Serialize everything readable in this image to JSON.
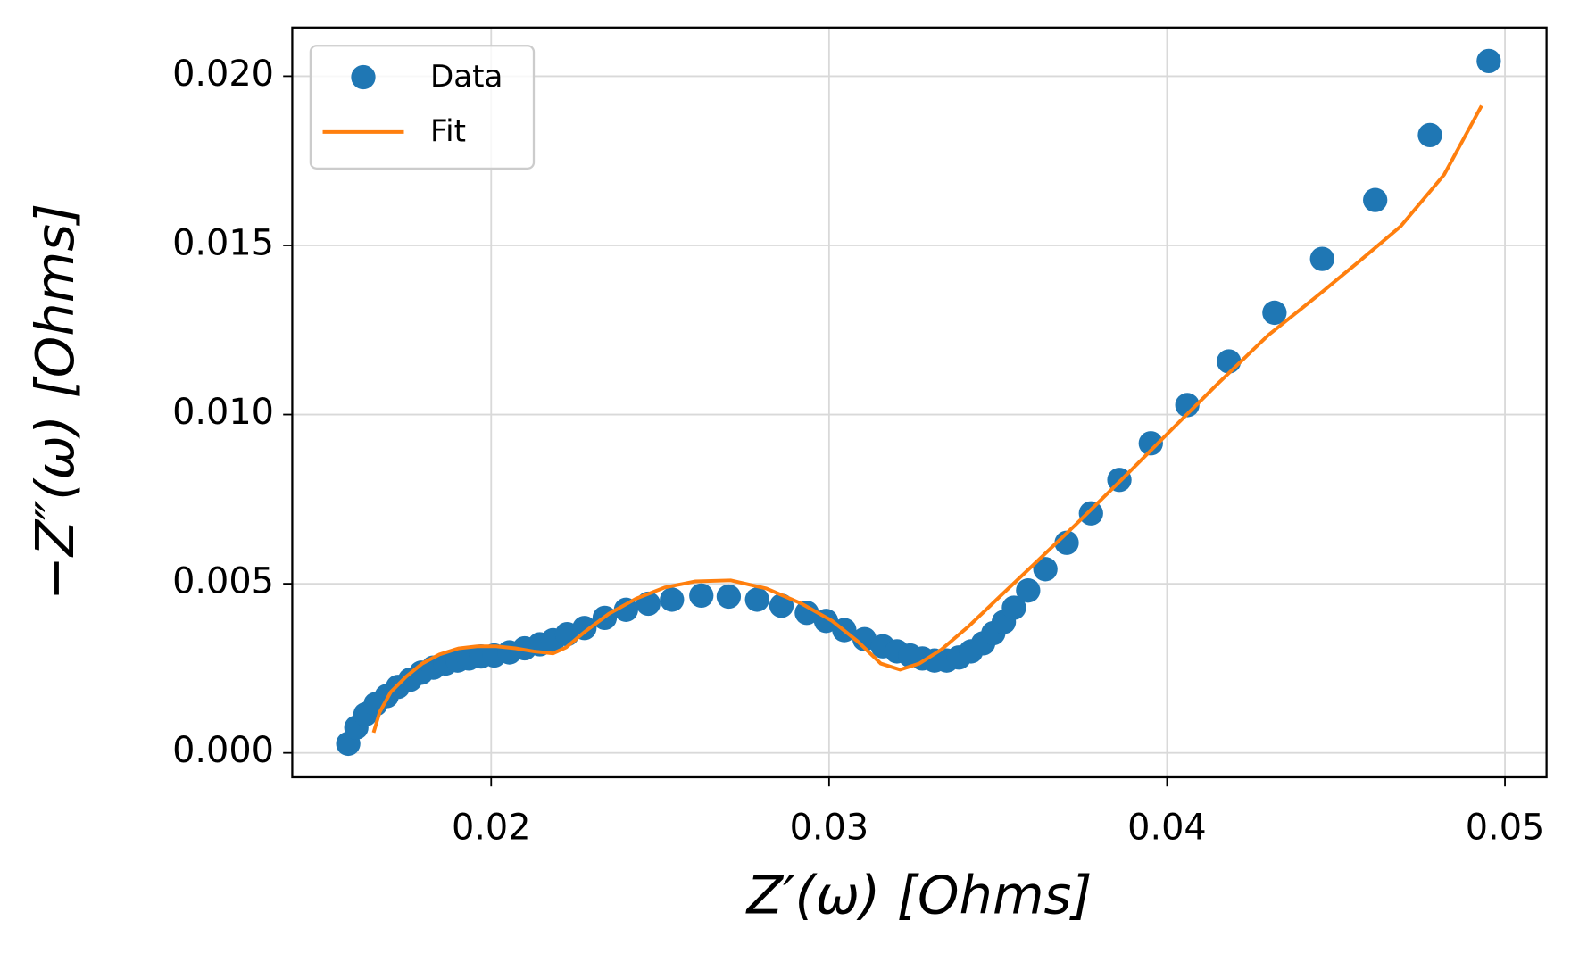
{
  "chart_data": {
    "type": "line",
    "xlabel": "Z′(ω) [Ohms]",
    "ylabel": "−Z″(ω) [Ohms]",
    "xlim": [
      0.014114,
      0.05123
    ],
    "ylim": [
      -0.00072,
      0.02144
    ],
    "xticks": [
      0.02,
      0.03,
      0.04,
      0.05
    ],
    "yticks": [
      {
        "value": 0,
        "label": "0.000"
      },
      {
        "value": 0.005,
        "label": "0.005"
      },
      {
        "value": 0.01,
        "label": "0.010"
      },
      {
        "value": 0.015,
        "label": "0.015"
      },
      {
        "value": 0.02,
        "label": "0.020"
      }
    ],
    "grid": true,
    "legend": "upper left",
    "series": [
      {
        "name": "Data",
        "color": "#1f77b4",
        "mode": "markers",
        "x": [
          0.01577,
          0.01601,
          0.01628,
          0.01658,
          0.01691,
          0.01724,
          0.0176,
          0.01793,
          0.01829,
          0.01865,
          0.01901,
          0.01934,
          0.0197,
          0.02009,
          0.02054,
          0.02099,
          0.02144,
          0.02183,
          0.02225,
          0.02276,
          0.02336,
          0.02399,
          0.02465,
          0.02535,
          0.02622,
          0.02703,
          0.02787,
          0.02859,
          0.02934,
          0.02991,
          0.03045,
          0.03105,
          0.03159,
          0.03201,
          0.0324,
          0.03276,
          0.03312,
          0.03348,
          0.03384,
          0.0342,
          0.03456,
          0.03486,
          0.03517,
          0.03547,
          0.03589,
          0.0364,
          0.03703,
          0.03775,
          0.03859,
          0.03952,
          0.0406,
          0.04183,
          0.04318,
          0.04459,
          0.04616,
          0.04778,
          0.04952
        ],
        "values": [
          0.00027,
          0.00075,
          0.00114,
          0.00144,
          0.00168,
          0.00195,
          0.00216,
          0.00237,
          0.00252,
          0.00264,
          0.00273,
          0.00279,
          0.00285,
          0.00288,
          0.00297,
          0.00309,
          0.00321,
          0.00333,
          0.00351,
          0.00369,
          0.00399,
          0.00423,
          0.00441,
          0.00453,
          0.00465,
          0.00462,
          0.00453,
          0.00435,
          0.00414,
          0.0039,
          0.00363,
          0.00336,
          0.00315,
          0.003,
          0.00288,
          0.00279,
          0.00273,
          0.00273,
          0.00282,
          0.003,
          0.00324,
          0.00354,
          0.00387,
          0.00429,
          0.0048,
          0.00543,
          0.00621,
          0.00708,
          0.00807,
          0.00915,
          0.01028,
          0.01157,
          0.01301,
          0.0146,
          0.01634,
          0.01826,
          0.02045
        ]
      },
      {
        "name": "Fit",
        "color": "#ff7f0e",
        "mode": "line",
        "x": [
          0.01652,
          0.0167,
          0.01703,
          0.01748,
          0.01796,
          0.01847,
          0.01904,
          0.01958,
          0.02015,
          0.02072,
          0.02126,
          0.02183,
          0.02222,
          0.02276,
          0.02348,
          0.02429,
          0.02514,
          0.02604,
          0.02709,
          0.02814,
          0.02919,
          0.03009,
          0.03084,
          0.03153,
          0.0321,
          0.03267,
          0.03333,
          0.03414,
          0.03505,
          0.0361,
          0.0373,
          0.03865,
          0.04,
          0.0415,
          0.043,
          0.0445,
          0.0457,
          0.04691,
          0.0482,
          0.04931
        ],
        "values": [
          0.0006,
          0.0012,
          0.0018,
          0.00225,
          0.00264,
          0.00291,
          0.00309,
          0.00315,
          0.00315,
          0.00309,
          0.003,
          0.00294,
          0.00312,
          0.00357,
          0.00411,
          0.00456,
          0.00489,
          0.00507,
          0.0051,
          0.00486,
          0.00441,
          0.0039,
          0.0033,
          0.00264,
          0.00246,
          0.00264,
          0.00306,
          0.00375,
          0.00462,
          0.00561,
          0.00675,
          0.00807,
          0.00942,
          0.01091,
          0.01235,
          0.01355,
          0.01454,
          0.01556,
          0.01709,
          0.01913
        ]
      }
    ]
  }
}
